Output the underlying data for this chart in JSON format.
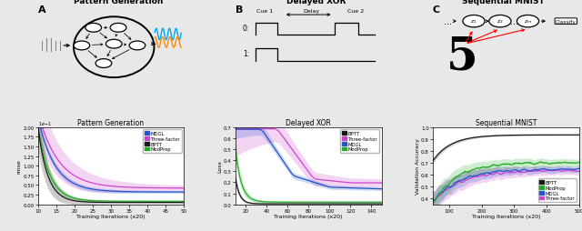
{
  "panel_titles": [
    "Pattern Generation",
    "Delayed XOR",
    "Sequential MNIST"
  ],
  "panel_labels": [
    "A",
    "B",
    "C"
  ],
  "fig_bg": "#e8e8e8",
  "plot_bg": "#ffffff",
  "pg_xlim": [
    10,
    50
  ],
  "pg_ylim": [
    0.0,
    2.0
  ],
  "pg_xlabel": "Training Iterations (x20)",
  "pg_ylabel": "rmse",
  "pg_yticks": [
    0.0,
    0.25,
    0.5,
    0.75,
    1.0,
    1.25,
    1.5,
    1.75,
    2.0
  ],
  "pg_xticks": [
    10,
    15,
    20,
    25,
    30,
    35,
    40,
    45,
    50
  ],
  "pg_legend_order": [
    "MDGL",
    "Three-factor",
    "BPTT",
    "ModProp"
  ],
  "xor_xlim": [
    10,
    150
  ],
  "xor_ylim": [
    0.0,
    0.7
  ],
  "xor_xlabel": "Training Iterations (x20)",
  "xor_ylabel": "Loss",
  "xor_yticks": [
    0.0,
    0.1,
    0.2,
    0.3,
    0.4,
    0.5,
    0.6,
    0.7
  ],
  "xor_xticks": [
    20,
    40,
    60,
    80,
    100,
    120,
    140
  ],
  "xor_legend_order": [
    "BPTT",
    "Three-factor",
    "MDGL",
    "ModProp"
  ],
  "mnist_xlim": [
    50,
    500
  ],
  "mnist_ylim": [
    0.35,
    1.0
  ],
  "mnist_xlabel": "Training Iterations (x20)",
  "mnist_ylabel": "Validation Accuracy",
  "mnist_yticks": [
    0.4,
    0.5,
    0.6,
    0.7,
    0.8,
    0.9,
    1.0
  ],
  "mnist_xticks": [
    100,
    200,
    300,
    400,
    500
  ],
  "mnist_legend_order": [
    "BPTT",
    "ModProp",
    "MDGL",
    "Three-factor"
  ],
  "colors": {
    "BPTT": "#1a1a1a",
    "MDGL": "#2255cc",
    "Three-factor": "#cc44cc",
    "ModProp": "#22aa22"
  }
}
